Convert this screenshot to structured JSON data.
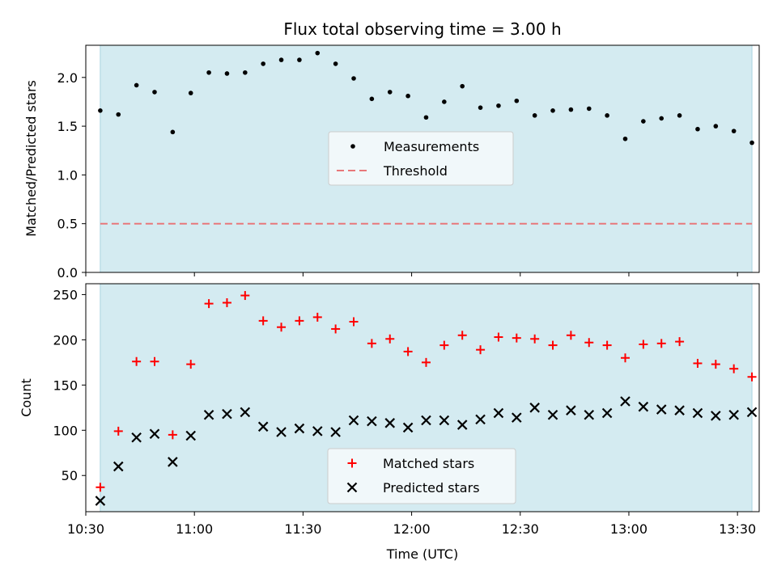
{
  "chart_data": {
    "title": "Flux total observing time = 3.00 h",
    "xlabel": "Time (UTC)",
    "x_ticks": [
      "10:30",
      "11:00",
      "11:30",
      "12:00",
      "12:30",
      "13:00",
      "13:30"
    ],
    "x_times": [
      "10:34",
      "10:39",
      "10:44",
      "10:49",
      "10:54",
      "10:59",
      "11:04",
      "11:09",
      "11:14",
      "11:19",
      "11:24",
      "11:29",
      "11:34",
      "11:39",
      "11:44",
      "11:49",
      "11:54",
      "11:59",
      "12:04",
      "12:09",
      "12:14",
      "12:19",
      "12:24",
      "12:29",
      "12:34",
      "12:39",
      "12:44",
      "12:49",
      "12:54",
      "12:59",
      "13:04",
      "13:09",
      "13:14",
      "13:19",
      "13:24",
      "13:29",
      "13:34"
    ],
    "observing_window": [
      "10:34",
      "13:34"
    ],
    "colors": {
      "shade": "#d4ebf1",
      "shade_edge": "#a9d3df",
      "threshold": "#e8787a",
      "matched": "#ff0000",
      "predicted": "#000000"
    },
    "top": {
      "type": "scatter",
      "ylabel": "Matched/Predicted stars",
      "ylim": [
        0,
        2.33
      ],
      "y_ticks": [
        "0.0",
        "0.5",
        "1.0",
        "1.5",
        "2.0"
      ],
      "legend": {
        "placement": "center",
        "entries": [
          "Measurements",
          "Threshold"
        ]
      },
      "threshold": 0.5,
      "series": [
        {
          "name": "Measurements",
          "values": [
            1.66,
            1.62,
            1.92,
            1.85,
            1.44,
            1.84,
            2.05,
            2.04,
            2.05,
            2.14,
            2.18,
            2.18,
            2.25,
            2.14,
            1.99,
            1.78,
            1.85,
            1.81,
            1.59,
            1.75,
            1.91,
            1.69,
            1.71,
            1.76,
            1.61,
            1.66,
            1.67,
            1.68,
            1.61,
            1.37,
            1.55,
            1.58,
            1.61,
            1.47,
            1.5,
            1.45,
            1.33
          ]
        }
      ]
    },
    "bottom": {
      "type": "scatter",
      "ylabel": "Count",
      "ylim": [
        10,
        262
      ],
      "y_ticks": [
        "50",
        "100",
        "150",
        "200",
        "250"
      ],
      "legend": {
        "placement": "lower center",
        "entries": [
          "Matched stars",
          "Predicted stars"
        ]
      },
      "series": [
        {
          "name": "Matched stars",
          "values": [
            37,
            99,
            176,
            176,
            95,
            173,
            240,
            241,
            249,
            221,
            214,
            221,
            225,
            212,
            220,
            196,
            201,
            187,
            175,
            194,
            205,
            189,
            203,
            202,
            201,
            194,
            205,
            197,
            194,
            180,
            195,
            196,
            198,
            174,
            173,
            168,
            159
          ]
        },
        {
          "name": "Predicted stars",
          "values": [
            22,
            60,
            92,
            96,
            65,
            94,
            117,
            118,
            120,
            104,
            98,
            102,
            99,
            98,
            111,
            110,
            108,
            103,
            111,
            111,
            106,
            112,
            119,
            114,
            125,
            117,
            122,
            117,
            119,
            132,
            126,
            123,
            122,
            119,
            116,
            117,
            120
          ]
        }
      ]
    }
  }
}
